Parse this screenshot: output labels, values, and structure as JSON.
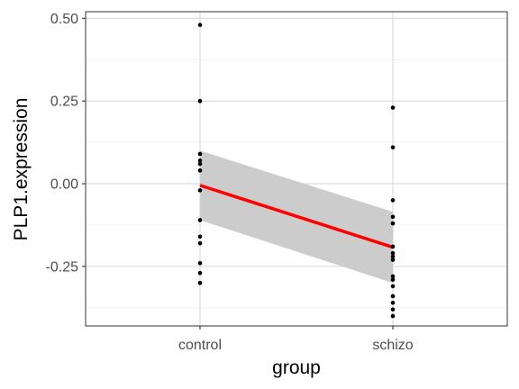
{
  "chart_data": {
    "type": "scatter",
    "xlabel": "group",
    "ylabel": "PLP1.expression",
    "categories": [
      "control",
      "schizo"
    ],
    "ylim": [
      -0.43,
      0.52
    ],
    "yticks": [
      0.5,
      0.25,
      0.0,
      -0.25
    ],
    "ytick_labels": [
      "0.50",
      "0.25",
      "0.00",
      "-0.25"
    ],
    "grid": true,
    "series": [
      {
        "category": "control",
        "values": [
          0.48,
          0.25,
          0.09,
          0.07,
          0.06,
          0.04,
          -0.02,
          -0.11,
          -0.16,
          -0.18,
          -0.24,
          -0.27,
          -0.3
        ]
      },
      {
        "category": "schizo",
        "values": [
          0.23,
          0.11,
          -0.05,
          -0.1,
          -0.12,
          -0.19,
          -0.21,
          -0.22,
          -0.23,
          -0.28,
          -0.29,
          -0.31,
          -0.34,
          -0.36,
          -0.38,
          -0.4
        ]
      }
    ],
    "regression": {
      "color": "#ff0000",
      "fit": [
        -0.005,
        -0.192
      ],
      "ci_upper": [
        0.1,
        -0.085
      ],
      "ci_lower": [
        -0.11,
        -0.3
      ],
      "band_color": "#cccccc"
    },
    "point_color": "#000000"
  }
}
